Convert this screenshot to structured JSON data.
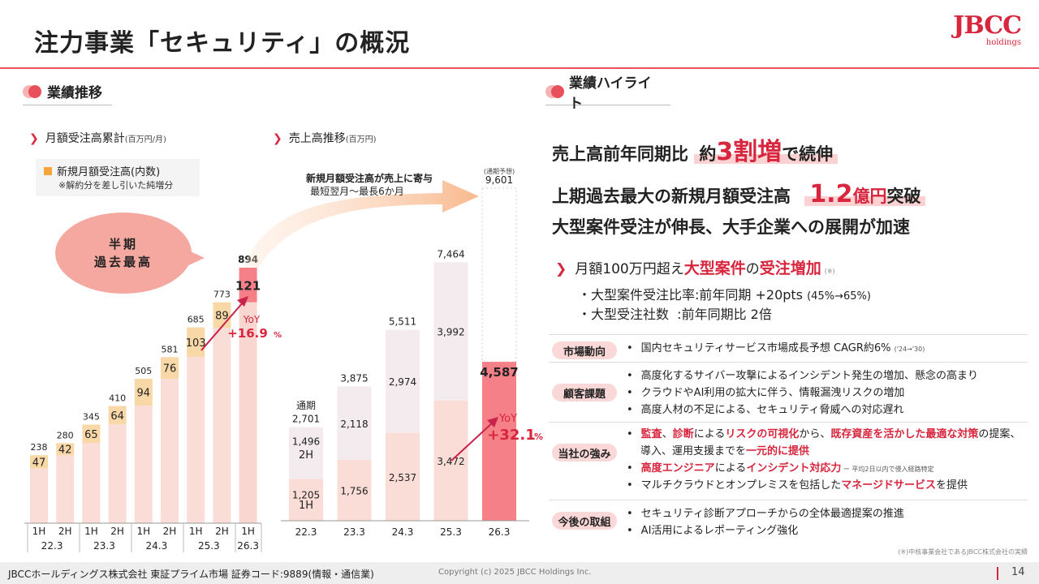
{
  "title": "注力事業「セキュリティ」の概況",
  "logo": {
    "main": "JBCC",
    "sub": "holdings"
  },
  "left_section": {
    "title": "業績推移"
  },
  "right_section": {
    "title": "業績ハイライト"
  },
  "chart1": {
    "heading": "月額受注高累計",
    "unit": "(百万円/月)",
    "legend": "新規月額受注高(内数)",
    "legend_note": "※解約分を差し引いた純増分",
    "bubble_line1": "半期",
    "bubble_line2": "過去最高",
    "yoy_label": "YoY",
    "yoy_value": "+16.9",
    "yoy_pct": "%"
  },
  "chart2": {
    "heading": "売上高推移",
    "unit": "(百万円)",
    "arrow_text1": "新規月額受注高が売上に寄与",
    "arrow_text2": "最短翌月〜最長6か月",
    "forecast_label": "(通期予想)",
    "fullyear_label": "通期",
    "yoy_label": "YoY",
    "yoy_value": "+32.1",
    "yoy_pct": "%"
  },
  "chart_data": [
    {
      "type": "bar",
      "title": "月額受注高累計",
      "unit": "百万円/月",
      "categories": [
        "1H",
        "2H",
        "1H",
        "2H",
        "1H",
        "2H",
        "1H",
        "2H",
        "1H"
      ],
      "groups": [
        "22.3",
        "23.3",
        "24.3",
        "25.3",
        "26.3"
      ],
      "series": [
        {
          "name": "月額受注高累計",
          "values": [
            238,
            280,
            345,
            410,
            505,
            581,
            685,
            773,
            894
          ]
        },
        {
          "name": "新規月額受注高(内数)",
          "values": [
            47,
            42,
            65,
            64,
            94,
            76,
            103,
            89,
            121
          ]
        }
      ],
      "ylim": [
        0,
        950
      ]
    },
    {
      "type": "bar",
      "title": "売上高推移",
      "unit": "百万円",
      "categories": [
        "22.3",
        "23.3",
        "24.3",
        "25.3",
        "26.3"
      ],
      "series": [
        {
          "name": "通期",
          "values": [
            2701,
            3875,
            5511,
            7464,
            9601
          ]
        },
        {
          "name": "1H",
          "values": [
            1205,
            1756,
            2537,
            3472,
            4587
          ]
        },
        {
          "name": "2H",
          "values": [
            1496,
            2118,
            2974,
            3992,
            null
          ]
        }
      ],
      "bar_labels": {
        "total": [
          "2,701",
          "3,875",
          "5,511",
          "7,464",
          "9,601"
        ],
        "h1": [
          "1,205",
          "1,756",
          "2,537",
          "3,472",
          "4,587"
        ],
        "h2": [
          "1,496",
          "2,118",
          "2,974",
          "3,992",
          ""
        ]
      },
      "inner_tags": {
        "h1": "1H",
        "h2": "2H"
      },
      "ylim": [
        0,
        10000
      ]
    }
  ],
  "highlights": {
    "line1_pre": "売上高前年同期比",
    "line1_mid": "約",
    "line1_big": "3割増",
    "line1_post": "で続伸",
    "line2_pre": "上期過去最大の新規月額受注高",
    "line2_big": "1.2",
    "line2_unit": "億円",
    "line2_post": "突破",
    "line3": "大型案件受注が伸長、大手企業への展開が加速",
    "bigcase_pre": "月額100万円超え",
    "bigcase_red1": "大型案件",
    "bigcase_mid": "の",
    "bigcase_red2": "受注増加",
    "bigcase_note": "(※)",
    "row1_label": "・大型案件受注比率:前年同期 +20pts",
    "row1_small": "(45%→65%)",
    "row2_label": "・大型受注社数  :前年同期比 2倍"
  },
  "table": {
    "market_tag": "市場動向",
    "market_items": [
      "国内セキュリティサービス市場成長予想 CAGR約6%"
    ],
    "market_small": "('24→'30)",
    "customer_tag": "顧客課題",
    "customer_items": [
      "高度化するサイバー攻撃によるインシデント発生の増加、懸念の高まり",
      "クラウドやAI利用の拡大に伴う、情報漏洩リスクの増加",
      "高度人材の不足による、セキュリティ脅威への対応遅れ"
    ],
    "strength_tag": "当社の強み",
    "strength_1": {
      "r1": "監査",
      "t1": "、",
      "r2": "診断",
      "t2": "による",
      "r3": "リスクの可視化",
      "t3": "から、",
      "r4": "既存資産を活かした最適な対策",
      "t4": "の提案、"
    },
    "strength_1b": {
      "t1": "導入、運用支援までを",
      "r1": "一元的に提供"
    },
    "strength_2": {
      "r1": "高度エンジニア",
      "t1": "による",
      "r2": "インシデント対応力",
      "small": " ー 平均2日以内で侵入経路特定"
    },
    "strength_3": {
      "t1": "マルチクラウドとオンプレミスを包括した",
      "r1": "マネージドサービス",
      "t2": "を提供"
    },
    "future_tag": "今後の取組",
    "future_items": [
      "セキュリティ診断アプローチからの全体最適提案の推進",
      "AI活用によるレポーティング強化"
    ]
  },
  "footnote": "(※)中核事業会社であるJBCC株式会社の実績",
  "footer": {
    "company": "JBCCホールディングス株式会社 東証プライム市場 証券コード:9889(情報・通信業)",
    "copyright": "Copyright (c) 2025 JBCC Holdings Inc.",
    "page": "14"
  },
  "colors": {
    "accent": "#d7263d",
    "bar_base": "#f9ddd6",
    "bar_new": "#f9d8a8",
    "bar_h2": "#f3ebee",
    "bar_h1": "#f9ddd6",
    "bar_latest": "#f58087",
    "bar_latest_dark": "#ec5560"
  }
}
